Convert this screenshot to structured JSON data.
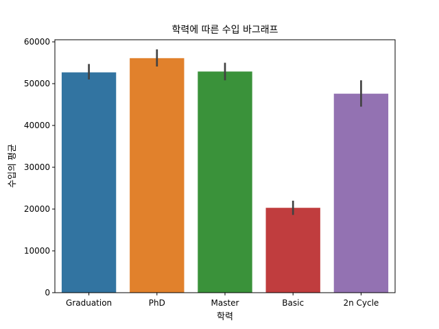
{
  "chart_data": {
    "type": "bar",
    "title": "학력에 따른 수입 바그래프",
    "xlabel": "학력",
    "ylabel": "수입의 평균",
    "categories": [
      "Graduation",
      "PhD",
      "Master",
      "Basic",
      "2n Cycle"
    ],
    "values": [
      52700,
      56100,
      52900,
      20300,
      47600
    ],
    "error_bars": [
      [
        51000,
        54700
      ],
      [
        54100,
        58200
      ],
      [
        50800,
        55000
      ],
      [
        18600,
        22000
      ],
      [
        44500,
        50800
      ]
    ],
    "colors": [
      "#3274a1",
      "#e1812c",
      "#3a923a",
      "#c03d3e",
      "#9372b2"
    ],
    "ylim": [
      0,
      60000
    ],
    "yticks": [
      0,
      10000,
      20000,
      30000,
      40000,
      50000,
      60000
    ],
    "grid": false
  }
}
